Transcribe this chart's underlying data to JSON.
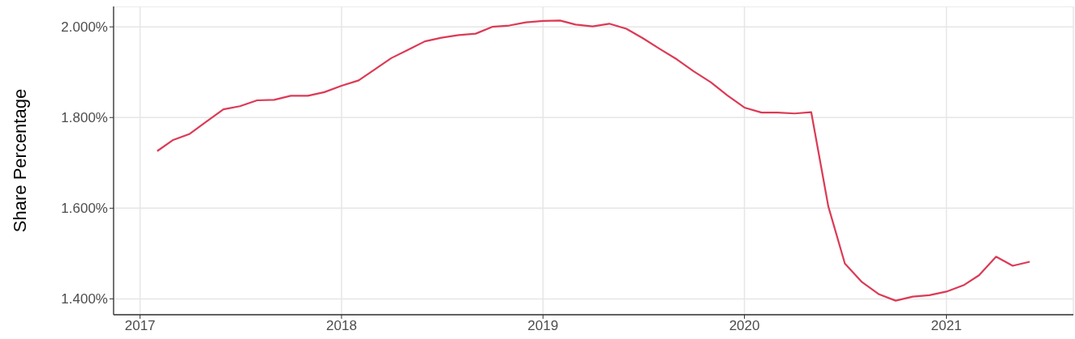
{
  "chart_data": {
    "type": "line",
    "ylabel": "Share Percentage",
    "x": [
      "2017-02",
      "2017-03",
      "2017-04",
      "2017-05",
      "2017-06",
      "2017-07",
      "2017-08",
      "2017-09",
      "2017-10",
      "2017-11",
      "2017-12",
      "2018-01",
      "2018-02",
      "2018-03",
      "2018-04",
      "2018-05",
      "2018-06",
      "2018-07",
      "2018-08",
      "2018-09",
      "2018-10",
      "2018-11",
      "2018-12",
      "2019-01",
      "2019-02",
      "2019-03",
      "2019-04",
      "2019-05",
      "2019-06",
      "2019-07",
      "2019-08",
      "2019-09",
      "2019-10",
      "2019-11",
      "2019-12",
      "2020-01",
      "2020-02",
      "2020-03",
      "2020-04",
      "2020-05",
      "2020-06",
      "2020-07",
      "2020-08",
      "2020-09",
      "2020-10",
      "2020-11",
      "2020-12",
      "2021-01",
      "2021-02",
      "2021-03",
      "2021-04",
      "2021-05",
      "2021-06"
    ],
    "values": [
      1.726,
      1.75,
      1.764,
      1.791,
      1.818,
      1.825,
      1.838,
      1.839,
      1.848,
      1.848,
      1.856,
      1.87,
      1.882,
      1.905,
      1.931,
      1.949,
      1.968,
      1.976,
      1.982,
      1.985,
      2.0,
      2.003,
      2.01,
      2.013,
      2.014,
      2.005,
      2.001,
      2.007,
      1.996,
      1.975,
      1.951,
      1.928,
      1.902,
      1.878,
      1.849,
      1.822,
      1.811,
      1.811,
      1.809,
      1.812,
      1.604,
      1.478,
      1.437,
      1.41,
      1.396,
      1.405,
      1.408,
      1.416,
      1.43,
      1.452,
      1.493,
      1.473,
      1.482
    ],
    "color": "#dc3a55",
    "xlim": [
      "2016-11-14",
      "2021-08-19"
    ],
    "xticks": [
      "2017",
      "2018",
      "2019",
      "2020",
      "2021"
    ],
    "ylim": [
      1.365,
      2.045
    ],
    "yticks": [
      {
        "value": 1.4,
        "label": "1.400%"
      },
      {
        "value": 1.6,
        "label": "1.600%"
      },
      {
        "value": 1.8,
        "label": "1.800%"
      },
      {
        "value": 2.0,
        "label": "2.000%"
      }
    ],
    "grid": true
  }
}
